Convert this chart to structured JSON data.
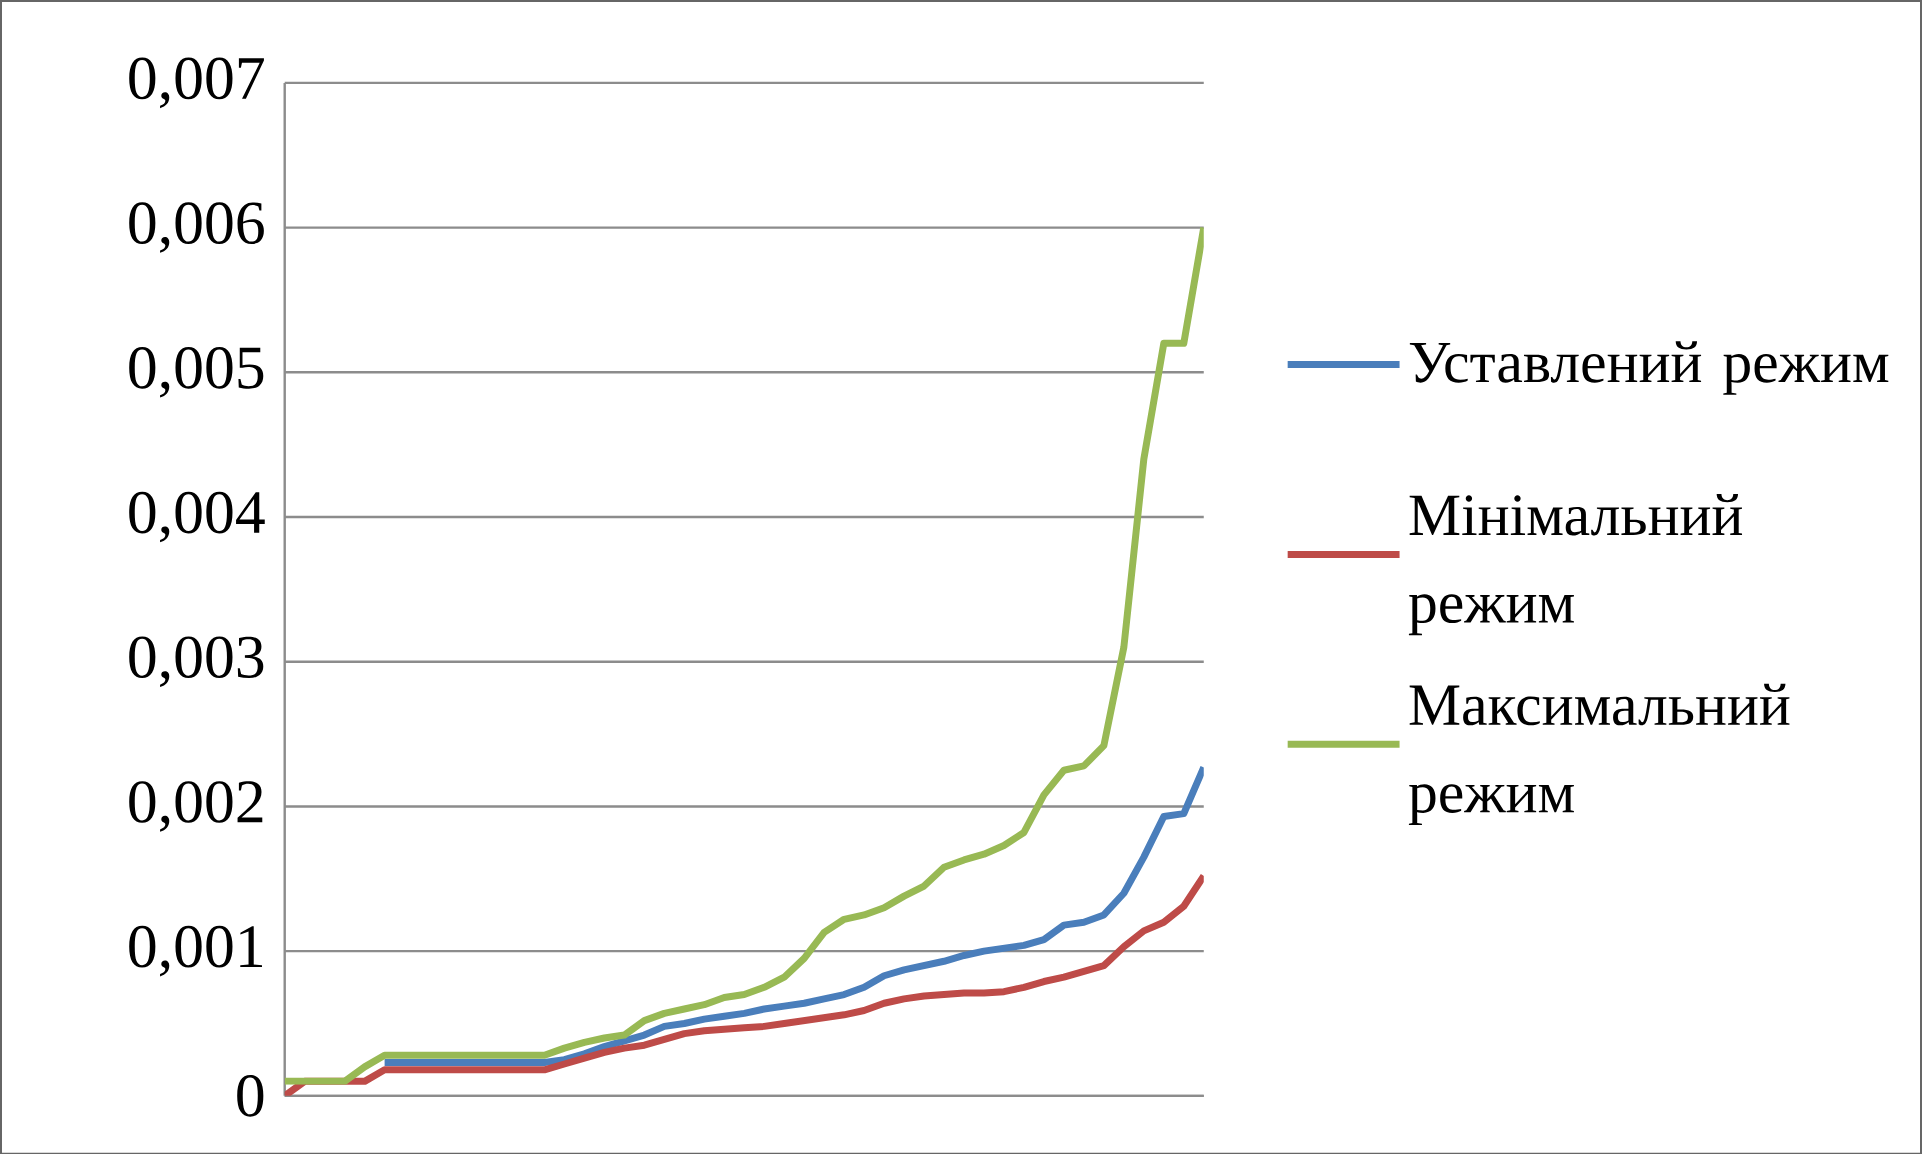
{
  "chart_data": {
    "type": "line",
    "categories": [
      null,
      null,
      null,
      null,
      null,
      null,
      null,
      null,
      null,
      null,
      null,
      null,
      null,
      null,
      null,
      null,
      null,
      null,
      null,
      null,
      null,
      null,
      null,
      null,
      null,
      null,
      null,
      null,
      null,
      null,
      null,
      null,
      null,
      null,
      null,
      null,
      null,
      null,
      null,
      null,
      null,
      null,
      null,
      null,
      null,
      null,
      null
    ],
    "series": [
      {
        "name": "Уставлений режим",
        "color": "#4a7ebb",
        "values": [
          null,
          null,
          null,
          null,
          null,
          0.00023,
          0.00023,
          0.00023,
          0.00023,
          0.00023,
          0.00023,
          0.00023,
          0.00023,
          0.00023,
          0.00025,
          0.00029,
          0.00034,
          0.00038,
          0.00042,
          0.00048,
          0.0005,
          0.00053,
          0.00055,
          0.00057,
          0.0006,
          0.00062,
          0.00064,
          0.00067,
          0.0007,
          0.00075,
          0.00083,
          0.00087,
          0.0009,
          0.00093,
          0.00097,
          0.001,
          0.00102,
          0.00104,
          0.00108,
          0.00118,
          0.0012,
          0.00125,
          0.0014,
          0.00165,
          0.00193,
          0.00195,
          0.00227
        ]
      },
      {
        "name": "Мінімальний режим",
        "color": "#be4b48",
        "values": [
          0,
          0.0001,
          0.0001,
          0.0001,
          0.0001,
          0.00018,
          0.00018,
          0.00018,
          0.00018,
          0.00018,
          0.00018,
          0.00018,
          0.00018,
          0.00018,
          0.00022,
          0.00026,
          0.0003,
          0.00033,
          0.00035,
          0.00039,
          0.00043,
          0.00045,
          0.00046,
          0.00047,
          0.00048,
          0.0005,
          0.00052,
          0.00054,
          0.00056,
          0.00059,
          0.00064,
          0.00067,
          0.00069,
          0.0007,
          0.00071,
          0.00071,
          0.00072,
          0.00075,
          0.00079,
          0.00082,
          0.00086,
          0.0009,
          0.00103,
          0.00114,
          0.0012,
          0.00131,
          0.00152
        ]
      },
      {
        "name": "Максимальний режим",
        "color": "#98b954",
        "values": [
          0.0001,
          0.0001,
          0.0001,
          0.0001,
          0.0002,
          0.00028,
          0.00028,
          0.00028,
          0.00028,
          0.00028,
          0.00028,
          0.00028,
          0.00028,
          0.00028,
          0.00033,
          0.00037,
          0.0004,
          0.00042,
          0.00052,
          0.00057,
          0.0006,
          0.00063,
          0.00068,
          0.0007,
          0.00075,
          0.00082,
          0.00095,
          0.00113,
          0.00122,
          0.00125,
          0.0013,
          0.00138,
          0.00145,
          0.00158,
          0.00163,
          0.00167,
          0.00173,
          0.00182,
          0.00208,
          0.00225,
          0.00228,
          0.00242,
          0.0031,
          0.0044,
          0.0052,
          0.0052,
          0.006
        ]
      }
    ],
    "ylim": [
      0,
      0.007
    ],
    "yticks": [
      {
        "value": 0,
        "label": "0"
      },
      {
        "value": 0.001,
        "label": "0,001"
      },
      {
        "value": 0.002,
        "label": "0,002"
      },
      {
        "value": 0.003,
        "label": "0,003"
      },
      {
        "value": 0.004,
        "label": "0,004"
      },
      {
        "value": 0.005,
        "label": "0,005"
      },
      {
        "value": 0.006,
        "label": "0,006"
      },
      {
        "value": 0.007,
        "label": "0,007"
      }
    ],
    "grid": "y",
    "legend": "right",
    "tick_labels": "y",
    "marker": "none",
    "line_style": "solid"
  }
}
